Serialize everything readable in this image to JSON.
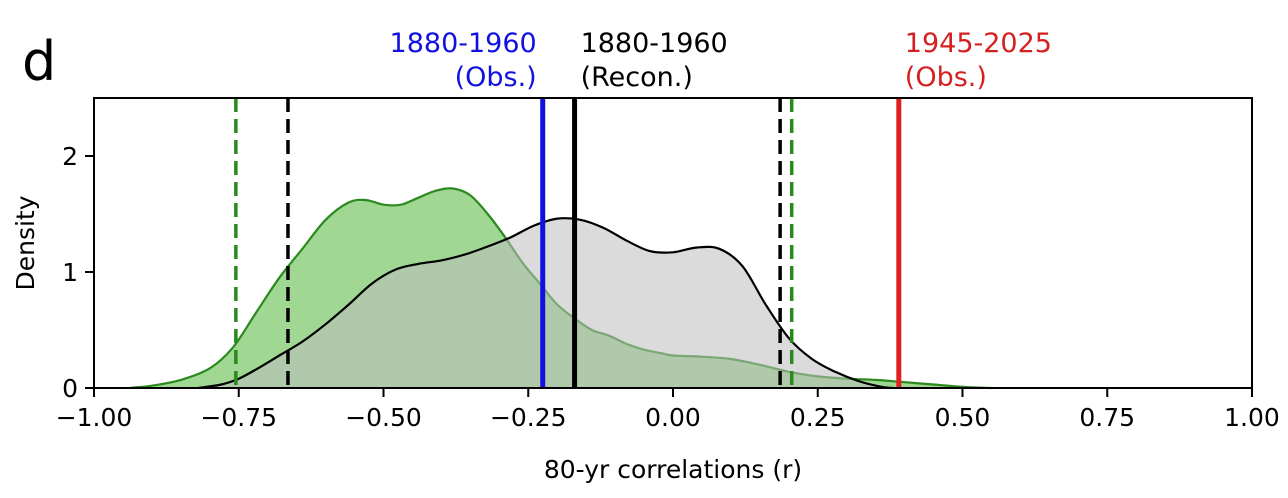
{
  "panel_label": "d",
  "chart_data": {
    "type": "area",
    "title": "",
    "xlabel": "80-yr correlations (r)",
    "ylabel": "Density",
    "xlim": [
      -1.0,
      1.0
    ],
    "ylim": [
      0,
      2.5
    ],
    "xticks": [
      -1.0,
      -0.75,
      -0.5,
      -0.25,
      0.0,
      0.25,
      0.5,
      0.75,
      1.0
    ],
    "xtick_labels": [
      "−1.00",
      "−0.75",
      "−0.50",
      "−0.25",
      "0.00",
      "0.25",
      "0.50",
      "0.75",
      "1.00"
    ],
    "yticks": [
      0,
      1,
      2
    ],
    "ytick_labels": [
      "0",
      "1",
      "2"
    ],
    "grid": false,
    "series": [
      {
        "color": "#2a8a1e",
        "fill": "#8fd07f",
        "x": [
          -0.94,
          -0.9,
          -0.85,
          -0.8,
          -0.76,
          -0.72,
          -0.68,
          -0.64,
          -0.6,
          -0.56,
          -0.53,
          -0.5,
          -0.47,
          -0.44,
          -0.41,
          -0.38,
          -0.35,
          -0.32,
          -0.29,
          -0.26,
          -0.23,
          -0.2,
          -0.17,
          -0.14,
          -0.11,
          -0.08,
          -0.05,
          -0.02,
          0.0,
          0.05,
          0.1,
          0.15,
          0.2,
          0.25,
          0.3,
          0.35,
          0.4,
          0.45,
          0.5,
          0.55
        ],
        "y": [
          0.0,
          0.02,
          0.07,
          0.17,
          0.35,
          0.65,
          0.95,
          1.2,
          1.45,
          1.6,
          1.62,
          1.58,
          1.58,
          1.64,
          1.7,
          1.72,
          1.66,
          1.5,
          1.3,
          1.08,
          0.9,
          0.72,
          0.6,
          0.5,
          0.45,
          0.38,
          0.33,
          0.3,
          0.28,
          0.27,
          0.25,
          0.2,
          0.14,
          0.1,
          0.08,
          0.07,
          0.05,
          0.03,
          0.01,
          0.0
        ]
      },
      {
        "color": "#000000",
        "fill": "#bdbdbd",
        "x": [
          -0.82,
          -0.78,
          -0.75,
          -0.72,
          -0.68,
          -0.64,
          -0.6,
          -0.56,
          -0.52,
          -0.48,
          -0.44,
          -0.4,
          -0.36,
          -0.32,
          -0.28,
          -0.24,
          -0.2,
          -0.16,
          -0.12,
          -0.08,
          -0.04,
          0.0,
          0.04,
          0.08,
          0.12,
          0.16,
          0.2,
          0.24,
          0.28,
          0.32,
          0.36,
          0.38
        ],
        "y": [
          0.0,
          0.03,
          0.08,
          0.16,
          0.28,
          0.4,
          0.55,
          0.72,
          0.9,
          1.02,
          1.07,
          1.1,
          1.15,
          1.22,
          1.3,
          1.4,
          1.46,
          1.45,
          1.38,
          1.27,
          1.18,
          1.17,
          1.21,
          1.2,
          1.05,
          0.72,
          0.43,
          0.25,
          0.14,
          0.06,
          0.01,
          0.0
        ]
      }
    ],
    "vlines": [
      {
        "x": -0.755,
        "style": "dashed",
        "color": "#2a8a1e"
      },
      {
        "x": -0.665,
        "style": "dashed",
        "color": "#000000"
      },
      {
        "x": 0.185,
        "style": "dashed",
        "color": "#000000"
      },
      {
        "x": 0.205,
        "style": "dashed",
        "color": "#2a8a1e"
      },
      {
        "x": -0.225,
        "style": "solid",
        "color": "#1010e0"
      },
      {
        "x": -0.17,
        "style": "solid",
        "color": "#000000"
      },
      {
        "x": 0.39,
        "style": "solid",
        "color": "#e02020"
      }
    ],
    "annotations": [
      {
        "line1": "1880-1960",
        "line2": "(Obs.)",
        "color": "#1010e0",
        "anchor": "end",
        "at_x": -0.225
      },
      {
        "line1": "1880-1960",
        "line2": "(Recon.)",
        "color": "#000000",
        "anchor": "start",
        "at_x": -0.17
      },
      {
        "line1": "1945-2025",
        "line2": "(Obs.)",
        "color": "#d42020",
        "anchor": "start",
        "at_x": 0.39
      }
    ]
  }
}
